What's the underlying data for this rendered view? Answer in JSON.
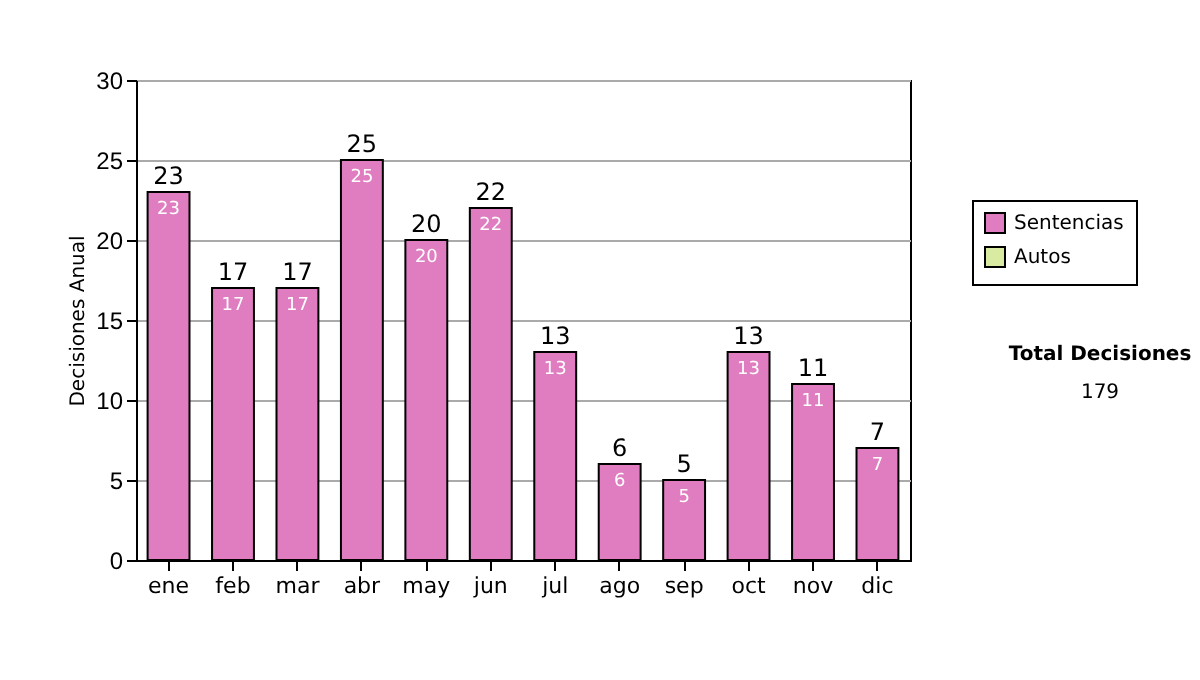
{
  "chart_data": {
    "type": "bar",
    "ylabel": "Decisiones Anual",
    "categories": [
      "ene",
      "feb",
      "mar",
      "abr",
      "may",
      "jun",
      "jul",
      "ago",
      "sep",
      "oct",
      "nov",
      "dic"
    ],
    "series": [
      {
        "name": "Sentencias",
        "color": "#e07cc0",
        "values": [
          23,
          17,
          17,
          25,
          20,
          22,
          13,
          6,
          5,
          13,
          11,
          7
        ]
      },
      {
        "name": "Autos",
        "color": "#d9eba0",
        "values": [
          null,
          null,
          null,
          null,
          null,
          null,
          null,
          null,
          null,
          null,
          null,
          null
        ]
      }
    ],
    "totals": [
      "23",
      "17",
      "17",
      "25",
      "20",
      "22",
      "13",
      "6",
      "5",
      "13",
      "11",
      "7"
    ],
    "data_labels": true,
    "ylim": [
      0,
      30
    ],
    "yticks": [
      0,
      5,
      10,
      15,
      20,
      25,
      30
    ],
    "grid": "y",
    "legend": "right",
    "annotations": [
      "Total Decisiones",
      "179"
    ]
  }
}
